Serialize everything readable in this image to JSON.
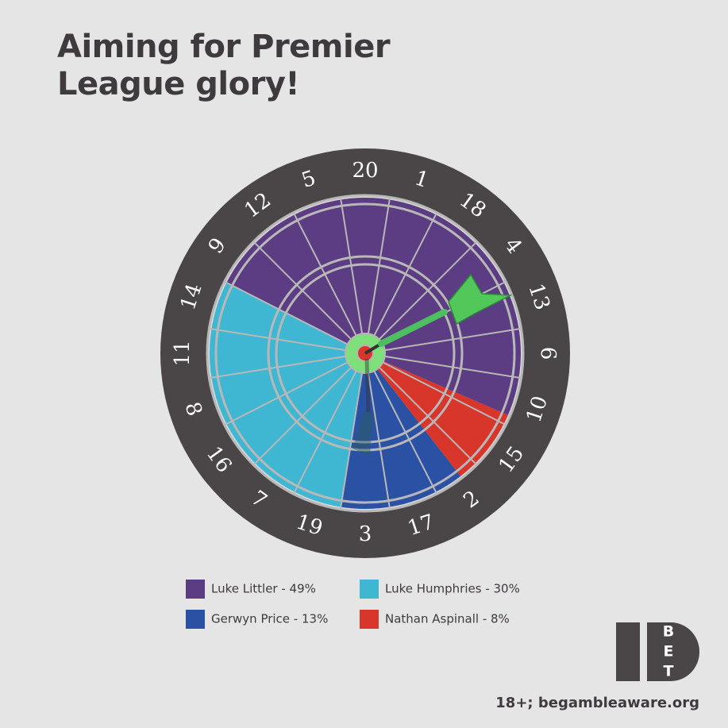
{
  "chart_data": {
    "type": "pie",
    "title": "Aiming for Premier League glory!",
    "categories": [
      "Luke Littler - 49%",
      "Luke Humphries - 30%",
      "Gerwyn Price - 13%",
      "Nathan Aspinall - 8%"
    ],
    "values": [
      49,
      30,
      13,
      8
    ],
    "colors": [
      "#5c3c82",
      "#3fb6d2",
      "#2a51a3",
      "#d8352b"
    ],
    "board_numbers": [
      "20",
      "1",
      "18",
      "4",
      "13",
      "6",
      "10",
      "15",
      "2",
      "17",
      "3",
      "19",
      "7",
      "16",
      "8",
      "11",
      "14",
      "9",
      "12",
      "5"
    ]
  },
  "logo": [
    "B",
    "E",
    "T"
  ],
  "footer": "18+; begambleaware.org"
}
